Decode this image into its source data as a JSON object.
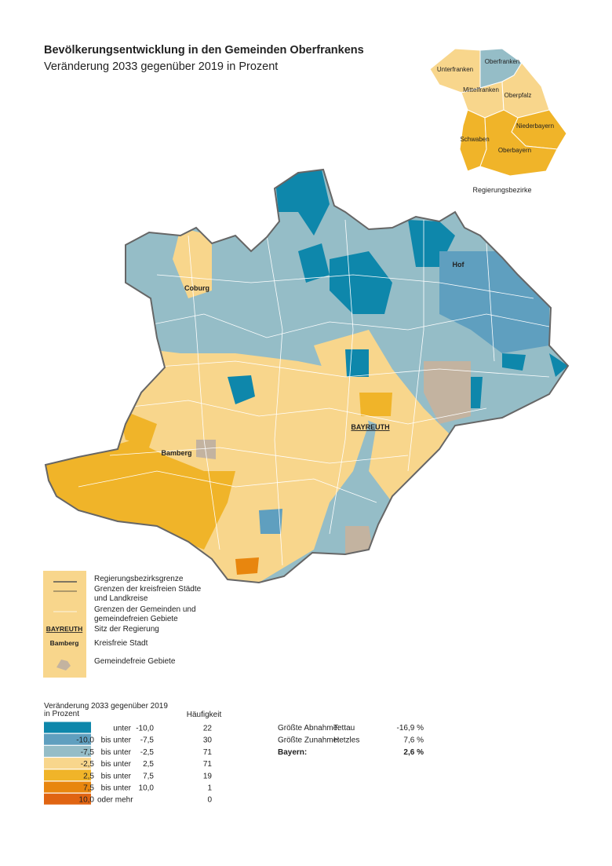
{
  "title": "Bevölkerungsentwicklung in den Gemeinden Oberfrankens",
  "subtitle": "Veränderung 2033 gegenüber 2019 in Prozent",
  "inset": {
    "regions": [
      "Unterfranken",
      "Oberfranken",
      "Mittelfranken",
      "Oberpfalz",
      "Niederbayern",
      "Schwaben",
      "Oberbayern"
    ],
    "caption": "Regierungsbezirke"
  },
  "map_labels": [
    "Coburg",
    "Hof",
    "Bamberg",
    "BAYREUTH"
  ],
  "boundary_legend": [
    {
      "label": [
        "Regierungsbezirksgrenze"
      ]
    },
    {
      "label": [
        "Grenzen der kreisfreien Städte",
        "und Landkreise"
      ]
    },
    {
      "label": [
        "Grenzen der Gemeinden und",
        "gemeindefreien Gebiete"
      ]
    },
    {
      "symbol": "BAYREUTH",
      "label": [
        "Sitz der Regierung"
      ]
    },
    {
      "symbol": "Bamberg",
      "label": [
        "Kreisfreie Stadt"
      ]
    },
    {
      "label": [
        "Gemeindefreie Gebiete"
      ]
    }
  ],
  "class_legend": {
    "title": [
      "Veränderung 2033 gegenüber 2019",
      "in Prozent"
    ],
    "count_header": "Häufigkeit",
    "classes": [
      {
        "op": "unter",
        "high": "-10,0",
        "count": 22
      },
      {
        "low": "-10,0",
        "op": "bis unter",
        "high": "-7,5",
        "count": 30
      },
      {
        "low": "-7,5",
        "op": "bis unter",
        "high": "-2,5",
        "count": 71
      },
      {
        "low": "-2,5",
        "op": "bis unter",
        "high": "2,5",
        "count": 71
      },
      {
        "low": "2,5",
        "op": "bis unter",
        "high": "7,5",
        "count": 19
      },
      {
        "low": "7,5",
        "op": "bis unter",
        "high": "10,0",
        "count": 1
      },
      {
        "low": "10,0",
        "op": "oder mehr",
        "count": 0
      }
    ]
  },
  "stats": [
    {
      "label": "Größte Abnahme:",
      "name": "Tettau",
      "value": "-16,9 %"
    },
    {
      "label": "Größte Zunahme:",
      "name": "Hetzles",
      "value": "7,6 %"
    },
    {
      "label": "Bayern:",
      "value": "2,6 %"
    }
  ]
}
